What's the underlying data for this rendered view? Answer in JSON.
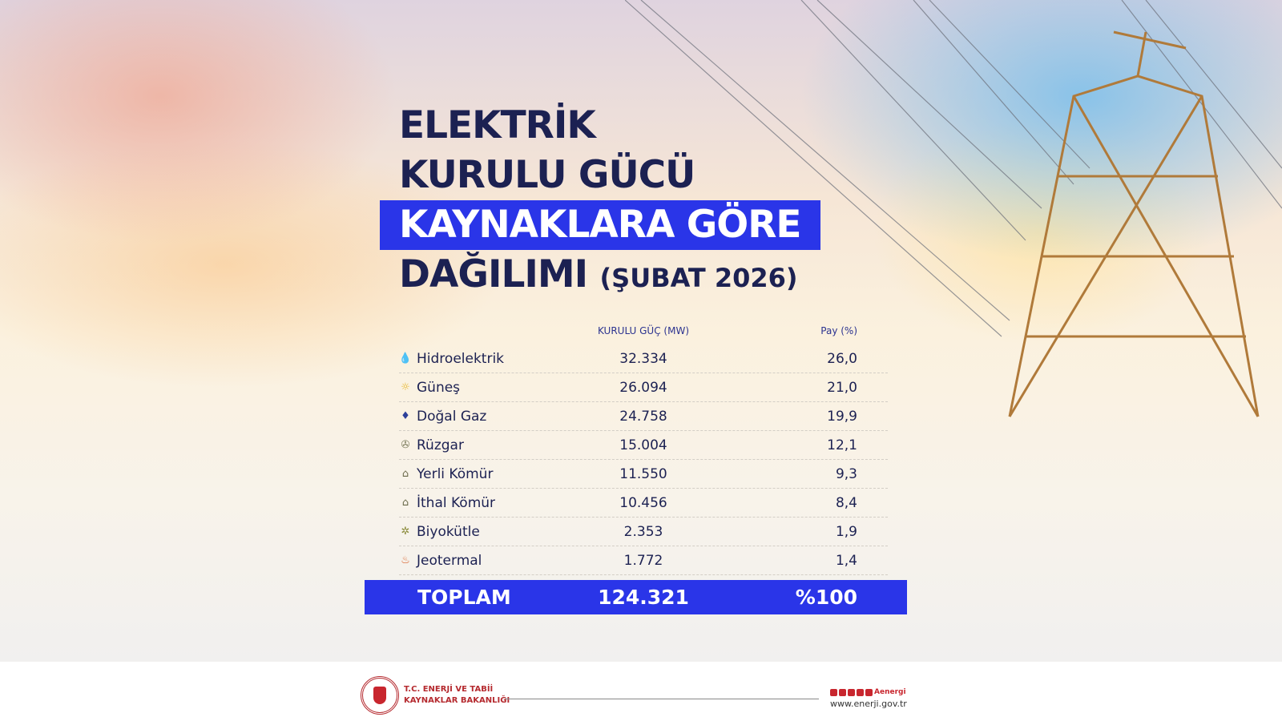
{
  "title": {
    "line1": "ELEKTRİK",
    "line2": "KURULU GÜCÜ",
    "line3": "KAYNAKLARA GÖRE",
    "line4": "DAĞILIMI",
    "period": "(ŞUBAT 2026)"
  },
  "table": {
    "headers": {
      "source": "",
      "capacity": "KURULU GÜÇ (MW)",
      "share": "Pay (%)"
    },
    "rows": [
      {
        "icon": "water-drop-icon",
        "source": "Hidroelektrik",
        "capacity": "32.334",
        "share": "26,0",
        "color": "#3aa9c9"
      },
      {
        "icon": "sun-icon",
        "source": "Güneş",
        "capacity": "26.094",
        "share": "21,0",
        "color": "#e6b422"
      },
      {
        "icon": "gas-flame-icon",
        "source": "Doğal Gaz",
        "capacity": "24.758",
        "share": "19,9",
        "color": "#2c3f9a"
      },
      {
        "icon": "wind-turbine-icon",
        "source": "Rüzgar",
        "capacity": "15.004",
        "share": "12,1",
        "color": "#7a7a5a"
      },
      {
        "icon": "coal-icon",
        "source": "Yerli Kömür",
        "capacity": "11.550",
        "share": "9,3",
        "color": "#6a6a4a"
      },
      {
        "icon": "coal-icon",
        "source": "İthal Kömür",
        "capacity": "10.456",
        "share": "8,4",
        "color": "#6a6a4a"
      },
      {
        "icon": "biomass-icon",
        "source": "Biyokütle",
        "capacity": "2.353",
        "share": "1,9",
        "color": "#8a8a3a"
      },
      {
        "icon": "geothermal-icon",
        "source": "Jeotermal",
        "capacity": "1.772",
        "share": "1,4",
        "color": "#d9622b"
      }
    ],
    "total": {
      "label": "TOPLAM",
      "capacity": "124.321",
      "share": "%100"
    }
  },
  "footer": {
    "ministry_line1": "T.C. ENERJİ VE TABİİ",
    "ministry_line2": "KAYNAKLAR BAKANLIĞI",
    "social_handle": "Aenergi",
    "website": "www.enerji.gov.tr"
  },
  "colors": {
    "accent": "#2a35e8",
    "text": "#1c2152",
    "brand": "#b52a2f"
  }
}
